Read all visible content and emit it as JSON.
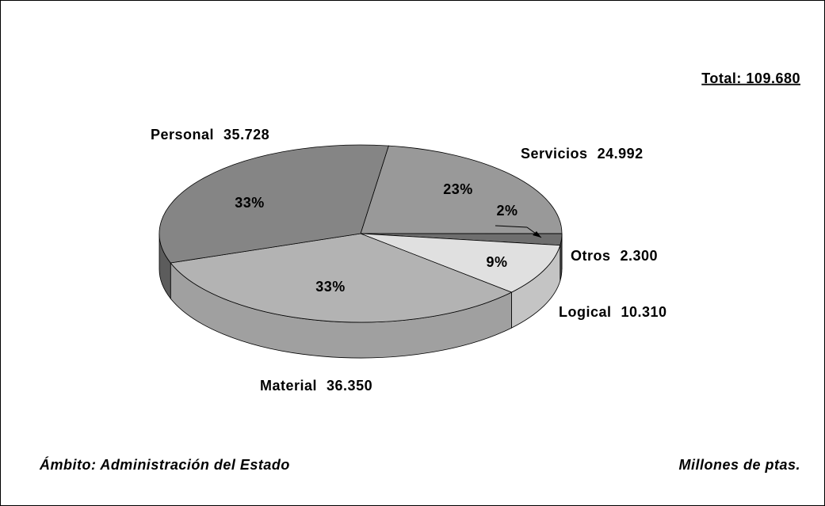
{
  "chart_data": {
    "type": "pie3d",
    "total_label": "Total: 109.680",
    "footer_left": "Ámbito: Administración del Estado",
    "footer_right": "Millones de ptas.",
    "categories": [
      "Servicios",
      "Otros",
      "Logical",
      "Material",
      "Personal"
    ],
    "values": [
      24992,
      2300,
      10310,
      36350,
      35728
    ],
    "value_labels": [
      "24.992",
      "2.300",
      "10.310",
      "36.350",
      "35.728"
    ],
    "percent_labels": [
      "23%",
      "2%",
      "9%",
      "33%",
      "33%"
    ],
    "colors": [
      "#999999",
      "#6e6e6e",
      "#e0e0e0",
      "#b3b3b3",
      "#858585"
    ],
    "side_colors": [
      "#7a7a7a",
      "#4e4e4e",
      "#c4c4c4",
      "#a0a0a0",
      "#5c5c5c"
    ]
  }
}
